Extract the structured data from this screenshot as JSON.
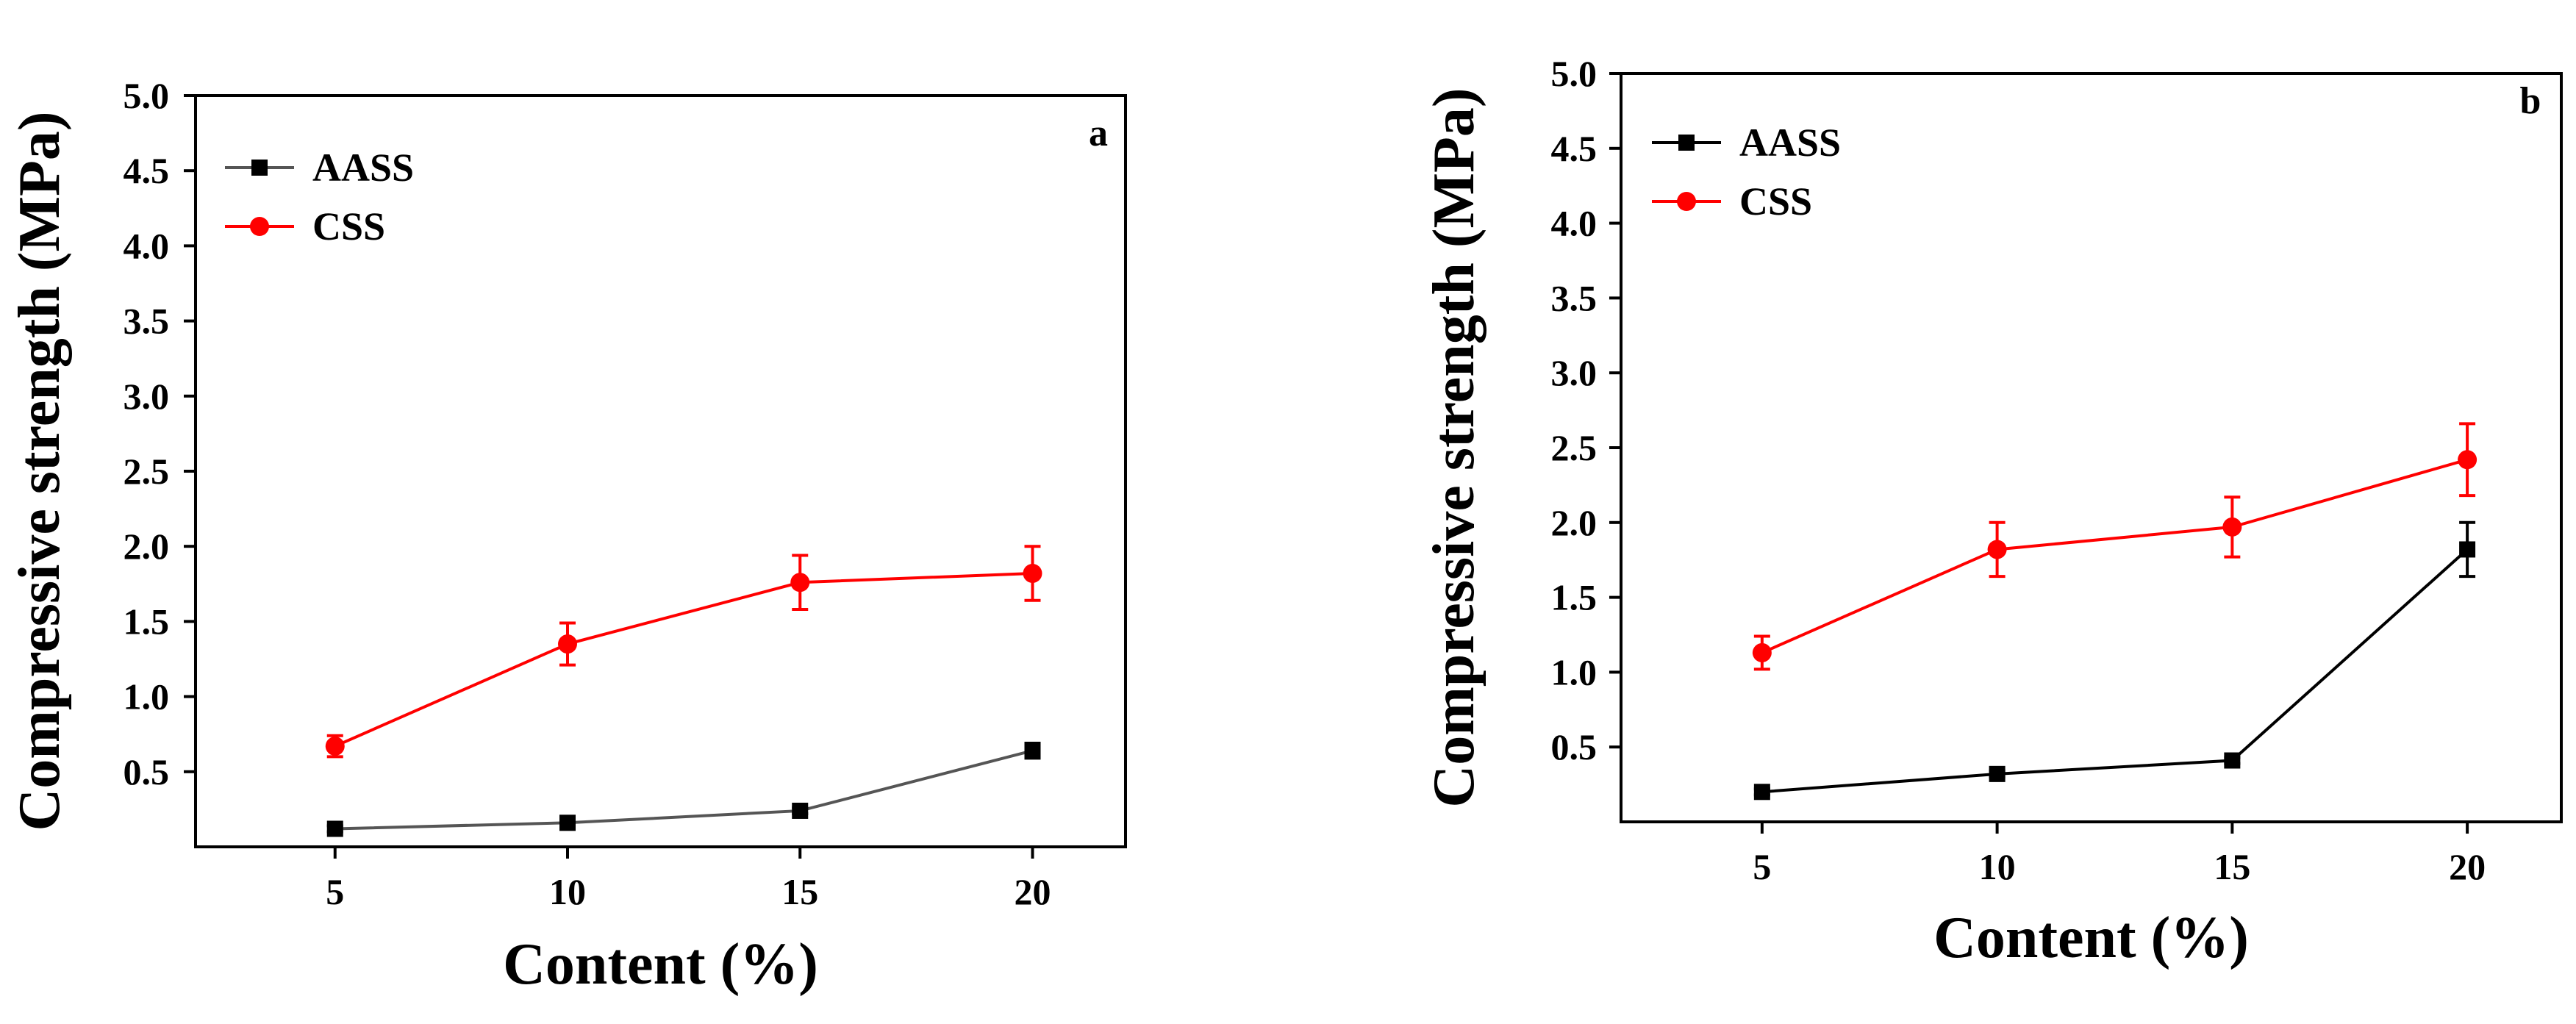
{
  "chart_data": [
    {
      "type": "line",
      "panel_label": "a",
      "xlabel": "Content (%)",
      "ylabel": "Compressive strength (MPa)",
      "x": [
        5,
        10,
        15,
        20
      ],
      "xlim": [
        2,
        22
      ],
      "ylim": [
        0,
        5
      ],
      "xticks": [
        "5",
        "10",
        "15",
        "20"
      ],
      "yticks": [
        "0.5",
        "1.0",
        "1.5",
        "2.0",
        "2.5",
        "3.0",
        "3.5",
        "4.0",
        "4.5",
        "5.0"
      ],
      "legend_position": "top-left",
      "series": [
        {
          "name": "AASS",
          "marker": "square",
          "color": "#000000",
          "line_color": "#555555",
          "values": [
            0.12,
            0.16,
            0.24,
            0.64
          ],
          "errors": [
            0.02,
            0.02,
            0.02,
            0.05
          ]
        },
        {
          "name": "CSS",
          "marker": "circle",
          "color": "#ff0000",
          "line_color": "#ff0000",
          "values": [
            0.67,
            1.35,
            1.76,
            1.82
          ],
          "errors": [
            0.07,
            0.14,
            0.18,
            0.18
          ]
        }
      ]
    },
    {
      "type": "line",
      "panel_label": "b",
      "xlabel": "Content (%)",
      "ylabel": "Compressive strength (MPa)",
      "x": [
        5,
        10,
        15,
        20
      ],
      "xlim": [
        2,
        22
      ],
      "ylim": [
        0,
        5
      ],
      "xticks": [
        "5",
        "10",
        "15",
        "20"
      ],
      "yticks": [
        "0.5",
        "1.0",
        "1.5",
        "2.0",
        "2.5",
        "3.0",
        "3.5",
        "4.0",
        "4.5",
        "5.0"
      ],
      "legend_position": "top-left",
      "series": [
        {
          "name": "AASS",
          "marker": "square",
          "color": "#000000",
          "line_color": "#000000",
          "values": [
            0.2,
            0.32,
            0.41,
            1.82
          ],
          "errors": [
            0.02,
            0.02,
            0.02,
            0.18
          ]
        },
        {
          "name": "CSS",
          "marker": "circle",
          "color": "#ff0000",
          "line_color": "#ff0000",
          "values": [
            1.13,
            1.82,
            1.97,
            2.42
          ],
          "errors": [
            0.11,
            0.18,
            0.2,
            0.24
          ]
        }
      ]
    }
  ]
}
